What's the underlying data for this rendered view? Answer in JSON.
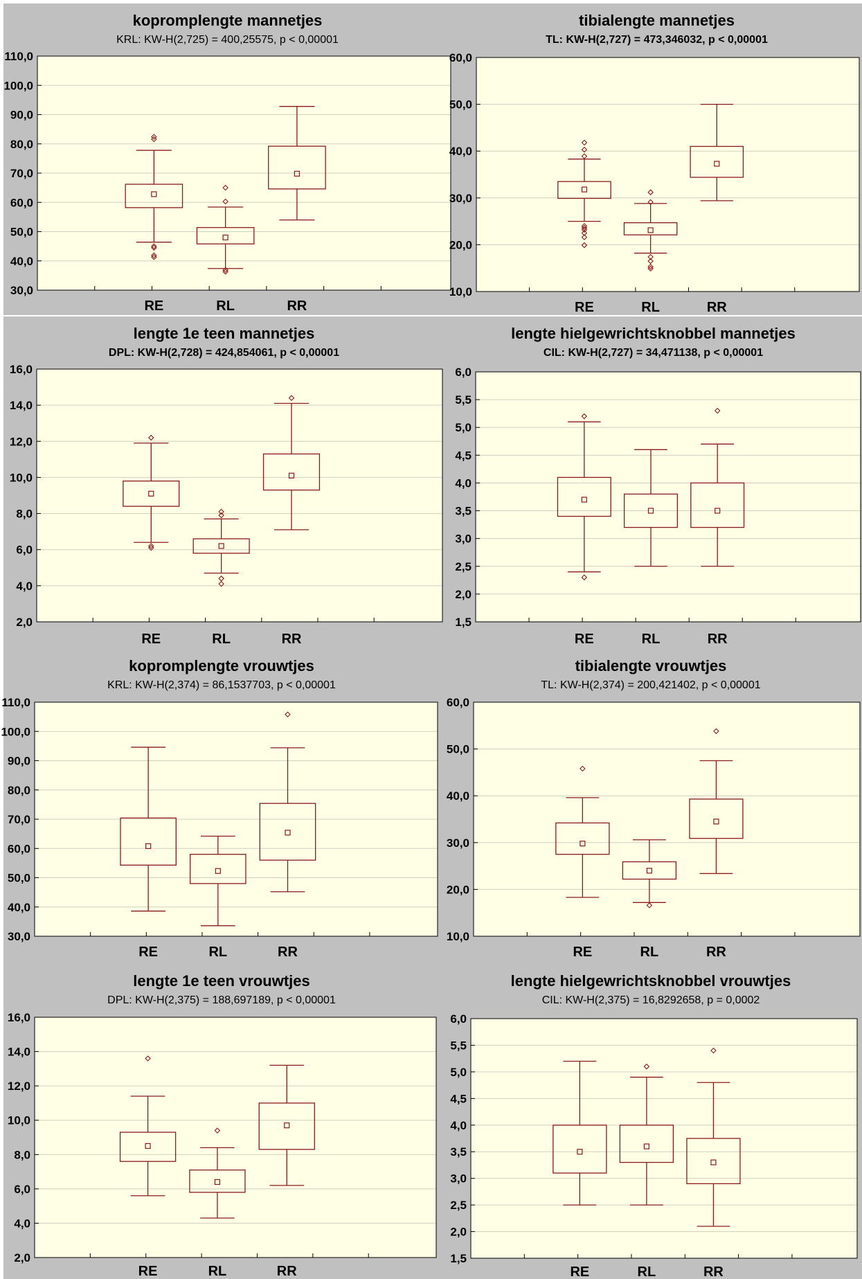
{
  "chart_data": [
    {
      "type": "box",
      "title": "kopromplengte mannetjes",
      "subtitle": "KRL:  KW-H(2,725) = 400,25575, p < 0,00001",
      "categories": [
        "RE",
        "RL",
        "RR"
      ],
      "ylim": [
        30,
        110
      ],
      "yticks": [
        "30,0",
        "40,0",
        "50,0",
        "60,0",
        "70,0",
        "80,0",
        "90,0",
        "100,0",
        "110,0"
      ],
      "boxes": [
        {
          "median": 62.8,
          "q1": 58.2,
          "q3": 66.2,
          "whisker_low": 46.4,
          "whisker_high": 77.8,
          "outliers": [
            82.4,
            81.6,
            45,
            44.5,
            41.9,
            41.3
          ]
        },
        {
          "median": 48,
          "q1": 45.8,
          "q3": 51.4,
          "whisker_low": 37.4,
          "whisker_high": 58.4,
          "outliers": [
            65,
            60.3,
            36.9,
            36.3
          ]
        },
        {
          "median": 69.8,
          "q1": 64.6,
          "q3": 79.2,
          "whisker_low": 54,
          "whisker_high": 92.8,
          "outliers": []
        }
      ]
    },
    {
      "type": "box",
      "title": "tibialengte mannetjes",
      "subtitle": "TL:  KW-H(2,727) = 473,346032, p < 0,00001",
      "categories": [
        "RE",
        "RL",
        "RR"
      ],
      "ylim": [
        10,
        60
      ],
      "yticks": [
        "10,0",
        "20,0",
        "30,0",
        "40,0",
        "50,0",
        "60,0"
      ],
      "boxes": [
        {
          "median": 31.8,
          "q1": 29.9,
          "q3": 33.5,
          "whisker_low": 25,
          "whisker_high": 38.3,
          "outliers": [
            41.8,
            40.3,
            38.9,
            24,
            23.6,
            23.2,
            22.5,
            21.6,
            19.9
          ]
        },
        {
          "median": 23.1,
          "q1": 22.1,
          "q3": 24.7,
          "whisker_low": 18.2,
          "whisker_high": 28.8,
          "outliers": [
            31.2,
            29.1,
            17.4,
            16.5,
            15.3,
            14.9
          ]
        },
        {
          "median": 37.3,
          "q1": 34.4,
          "q3": 41,
          "whisker_low": 29.4,
          "whisker_high": 50,
          "outliers": []
        }
      ]
    },
    {
      "type": "box",
      "title": "lengte 1e teen mannetjes",
      "subtitle": "DPL:  KW-H(2,728) = 424,854061, p < 0,00001",
      "categories": [
        "RE",
        "RL",
        "RR"
      ],
      "ylim": [
        2,
        16
      ],
      "yticks": [
        "2,0",
        "4,0",
        "6,0",
        "8,0",
        "10,0",
        "12,0",
        "14,0",
        "16,0"
      ],
      "boxes": [
        {
          "median": 9.1,
          "q1": 8.4,
          "q3": 9.8,
          "whisker_low": 6.4,
          "whisker_high": 11.9,
          "outliers": [
            12.2,
            6.2,
            6.1
          ]
        },
        {
          "median": 6.2,
          "q1": 5.8,
          "q3": 6.6,
          "whisker_low": 4.7,
          "whisker_high": 7.7,
          "outliers": [
            8.1,
            7.9,
            4.4,
            4.1
          ]
        },
        {
          "median": 10.1,
          "q1": 9.3,
          "q3": 11.3,
          "whisker_low": 7.1,
          "whisker_high": 14.1,
          "outliers": [
            14.4
          ]
        }
      ]
    },
    {
      "type": "box",
      "title": "lengte hielgewrichtsknobbel mannetjes",
      "subtitle": "CIL:  KW-H(2,727) = 34,471138, p < 0,00001",
      "categories": [
        "RE",
        "RL",
        "RR"
      ],
      "ylim": [
        1.5,
        6
      ],
      "yticks": [
        "1,5",
        "2,0",
        "2,5",
        "3,0",
        "3,5",
        "4,0",
        "4,5",
        "5,0",
        "5,5",
        "6,0"
      ],
      "boxes": [
        {
          "median": 3.7,
          "q1": 3.4,
          "q3": 4.1,
          "whisker_low": 2.4,
          "whisker_high": 5.1,
          "outliers": [
            5.2,
            2.3
          ]
        },
        {
          "median": 3.5,
          "q1": 3.2,
          "q3": 3.8,
          "whisker_low": 2.5,
          "whisker_high": 4.6,
          "outliers": []
        },
        {
          "median": 3.5,
          "q1": 3.2,
          "q3": 4,
          "whisker_low": 2.5,
          "whisker_high": 4.7,
          "outliers": [
            5.3
          ]
        }
      ]
    },
    {
      "type": "box",
      "title": "kopromplengte vrouwtjes",
      "subtitle": "KRL:  KW-H(2,374) = 86,1537703, p < 0,00001",
      "categories": [
        "RE",
        "RL",
        "RR"
      ],
      "ylim": [
        30,
        110
      ],
      "yticks": [
        "30,0",
        "40,0",
        "50,0",
        "60,0",
        "70,0",
        "80,0",
        "90,0",
        "100,0",
        "110,0"
      ],
      "boxes": [
        {
          "median": 60.8,
          "q1": 54.3,
          "q3": 70.4,
          "whisker_low": 38.6,
          "whisker_high": 94.6,
          "outliers": []
        },
        {
          "median": 52.3,
          "q1": 48,
          "q3": 58,
          "whisker_low": 33.6,
          "whisker_high": 64.2,
          "outliers": []
        },
        {
          "median": 65.4,
          "q1": 56,
          "q3": 75.4,
          "whisker_low": 45.2,
          "whisker_high": 94.4,
          "outliers": [
            105.8
          ]
        }
      ]
    },
    {
      "type": "box",
      "title": "tibialengte vrouwtjes",
      "subtitle": "TL:  KW-H(2,374) = 200,421402, p < 0,00001",
      "categories": [
        "RE",
        "RL",
        "RR"
      ],
      "ylim": [
        10,
        60
      ],
      "yticks": [
        "10,0",
        "20,0",
        "30,0",
        "40,0",
        "50,0",
        "60,0"
      ],
      "boxes": [
        {
          "median": 29.8,
          "q1": 27.5,
          "q3": 34.2,
          "whisker_low": 18.3,
          "whisker_high": 39.6,
          "outliers": [
            45.8
          ]
        },
        {
          "median": 24,
          "q1": 22.2,
          "q3": 25.9,
          "whisker_low": 17.2,
          "whisker_high": 30.6,
          "outliers": [
            16.6
          ]
        },
        {
          "median": 34.5,
          "q1": 30.9,
          "q3": 39.3,
          "whisker_low": 23.4,
          "whisker_high": 47.5,
          "outliers": [
            53.8
          ]
        }
      ]
    },
    {
      "type": "box",
      "title": "lengte 1e teen vrouwtjes",
      "subtitle": "DPL:  KW-H(2,375) = 188,697189, p < 0,00001",
      "categories": [
        "RE",
        "RL",
        "RR"
      ],
      "ylim": [
        2,
        16
      ],
      "yticks": [
        "2,0",
        "4,0",
        "6,0",
        "8,0",
        "10,0",
        "12,0",
        "14,0",
        "16,0"
      ],
      "boxes": [
        {
          "median": 8.5,
          "q1": 7.6,
          "q3": 9.3,
          "whisker_low": 5.6,
          "whisker_high": 11.4,
          "outliers": [
            13.6
          ]
        },
        {
          "median": 6.4,
          "q1": 5.8,
          "q3": 7.1,
          "whisker_low": 4.3,
          "whisker_high": 8.4,
          "outliers": [
            9.4
          ]
        },
        {
          "median": 9.7,
          "q1": 8.3,
          "q3": 11,
          "whisker_low": 6.2,
          "whisker_high": 13.2,
          "outliers": []
        }
      ]
    },
    {
      "type": "box",
      "title": "lengte hielgewrichtsknobbel vrouwtjes",
      "subtitle": "CIL:  KW-H(2,375) = 16,8292658, p = 0,0002",
      "categories": [
        "RE",
        "RL",
        "RR"
      ],
      "ylim": [
        1.5,
        6
      ],
      "yticks": [
        "1,5",
        "2,0",
        "2,5",
        "3,0",
        "3,5",
        "4,0",
        "4,5",
        "5,0",
        "5,5",
        "6,0"
      ],
      "boxes": [
        {
          "median": 3.5,
          "q1": 3.1,
          "q3": 4,
          "whisker_low": 2.5,
          "whisker_high": 5.2,
          "outliers": []
        },
        {
          "median": 3.6,
          "q1": 3.3,
          "q3": 4,
          "whisker_low": 2.5,
          "whisker_high": 4.9,
          "outliers": [
            5.1
          ]
        },
        {
          "median": 3.3,
          "q1": 2.9,
          "q3": 3.75,
          "whisker_low": 2.1,
          "whisker_high": 4.8,
          "outliers": [
            5.4
          ]
        }
      ]
    }
  ]
}
